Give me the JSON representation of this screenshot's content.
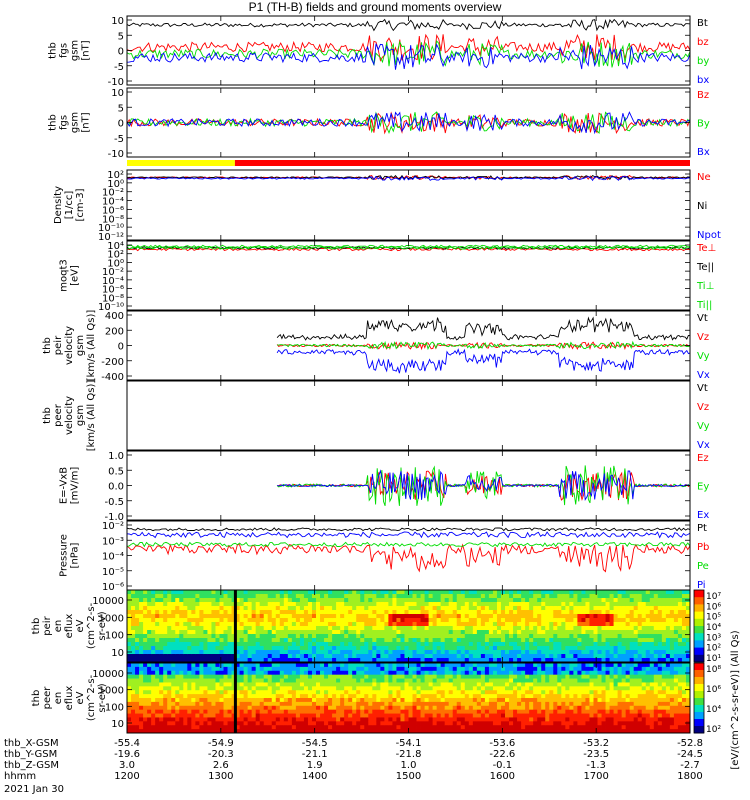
{
  "title": "P1 (TH-B) fields and ground moments overview",
  "date": "2021 Jan 30",
  "colorbar_label": "[eV/(cm^2-s-sr-eV)] (All Qs)",
  "chart_data": {
    "type": "line",
    "xlim": [
      1200,
      1800
    ],
    "panels": [
      {
        "ylabel": [
          "thb",
          "fgs",
          "gsm",
          "[nT]"
        ],
        "yticks": [
          "10",
          "5",
          "0",
          "-5",
          "-10"
        ],
        "ylim": [
          -10,
          10
        ],
        "log": false,
        "legend": [
          {
            "name": "Bt",
            "color": "#000000"
          },
          {
            "name": "bz",
            "color": "#ff0000"
          },
          {
            "name": "by",
            "color": "#00dd00"
          },
          {
            "name": "bx",
            "color": "#0000ff"
          }
        ]
      },
      {
        "ylabel": [
          "thb",
          "fgs",
          "gsm",
          "[nT]"
        ],
        "yticks": [
          "10",
          "5",
          "0",
          "-5",
          "-10"
        ],
        "ylim": [
          -13,
          13
        ],
        "log": false,
        "legend": [
          {
            "name": "Bz",
            "color": "#ff0000"
          },
          {
            "name": "By",
            "color": "#00dd00"
          },
          {
            "name": "Bx",
            "color": "#0000ff"
          }
        ]
      },
      {
        "ylabel": [
          "Density",
          "[1/cc]",
          "[cm-3]"
        ],
        "yticks": [
          "10²",
          "10⁰",
          "10⁻²",
          "10⁻⁴",
          "10⁻⁶",
          "10⁻⁸",
          "10⁻¹⁰",
          "10⁻¹²"
        ],
        "ylim": [
          1e-12,
          100
        ],
        "log": true,
        "legend": [
          {
            "name": "Ne",
            "color": "#ff0000"
          },
          {
            "name": "Ni",
            "color": "#000000"
          },
          {
            "name": "Npot",
            "color": "#0000ff"
          }
        ]
      },
      {
        "ylabel": [
          "moqt3",
          "[eV]"
        ],
        "yticks": [
          "10⁴",
          "10²",
          "10⁰",
          "10⁻²",
          "10⁻⁴",
          "10⁻⁶",
          "10⁻⁸",
          "10⁻¹⁰"
        ],
        "ylim": [
          1e-10,
          10000.0
        ],
        "log": true,
        "legend": [
          {
            "name": "Te⊥",
            "color": "#ff0000"
          },
          {
            "name": "Te||",
            "color": "#000000"
          },
          {
            "name": "Ti⊥",
            "color": "#00dd00"
          },
          {
            "name": "Ti||",
            "color": "#00dd00"
          }
        ]
      },
      {
        "ylabel": [
          "thb",
          "peir",
          "velocity",
          "gsm",
          "[km/s (All Qs)]"
        ],
        "yticks": [
          "400",
          "200",
          "0",
          "-200",
          "-400"
        ],
        "ylim": [
          -400,
          400
        ],
        "log": false,
        "legend": [
          {
            "name": "Vt",
            "color": "#000000"
          },
          {
            "name": "Vz",
            "color": "#ff0000"
          },
          {
            "name": "Vy",
            "color": "#00dd00"
          },
          {
            "name": "Vx",
            "color": "#0000ff"
          }
        ]
      },
      {
        "ylabel": [
          "thb",
          "peer",
          "velocity",
          "gsm",
          "[km/s (All Qs)]"
        ],
        "yticks": [],
        "ylim": [
          -400,
          400
        ],
        "log": false,
        "legend": [
          {
            "name": "Vt",
            "color": "#000000"
          },
          {
            "name": "Vz",
            "color": "#ff0000"
          },
          {
            "name": "Vy",
            "color": "#00dd00"
          },
          {
            "name": "Vx",
            "color": "#0000ff"
          }
        ]
      },
      {
        "ylabel": [
          "E=-VxB",
          "[mV/m]"
        ],
        "yticks": [
          "1.0",
          "0.5",
          "0.0",
          "-0.5",
          "-1.0"
        ],
        "ylim": [
          -1.3,
          1.3
        ],
        "log": false,
        "legend": [
          {
            "name": "Ez",
            "color": "#ff0000"
          },
          {
            "name": "Ey",
            "color": "#00dd00"
          },
          {
            "name": "Ex",
            "color": "#0000ff"
          }
        ]
      },
      {
        "ylabel": [
          "Pressure",
          "[nPa]"
        ],
        "yticks": [
          "10⁻²",
          "10⁻³",
          "10⁻⁴",
          "10⁻⁵",
          "10⁻⁶"
        ],
        "ylim": [
          1e-06,
          0.1
        ],
        "log": true,
        "legend": [
          {
            "name": "Pt",
            "color": "#000000"
          },
          {
            "name": "Pb",
            "color": "#ff0000"
          },
          {
            "name": "Pe",
            "color": "#00dd00"
          },
          {
            "name": "Pi",
            "color": "#0000ff"
          }
        ]
      },
      {
        "ylabel": [
          "thb",
          "peir",
          "en",
          "eflux",
          "eV",
          "(cm^2-s-",
          "sr-eV)"
        ],
        "yticks": [
          "10000",
          "1000",
          "100",
          "10"
        ],
        "ylim": [
          5,
          25000
        ],
        "log": true,
        "kind": "spectrogram",
        "colorbar": [
          "10⁷",
          "10⁶",
          "10⁵",
          "10⁴",
          "10³",
          "10²",
          "10¹"
        ]
      },
      {
        "ylabel": [
          "thb",
          "peer",
          "en",
          "eflux",
          "eV",
          "(cm^2-s-",
          "sr-eV)"
        ],
        "yticks": [
          "10000",
          "1000",
          "100",
          "10"
        ],
        "ylim": [
          5,
          25000
        ],
        "log": true,
        "kind": "spectrogram",
        "colorbar": [
          "10⁸",
          "10⁶",
          "10⁴",
          "10²"
        ]
      }
    ],
    "x_axis_rows": [
      {
        "label": "thb_X-GSM",
        "values": [
          "-55.4",
          "-54.9",
          "-54.5",
          "-54.1",
          "-53.6",
          "-53.2",
          "-52.8"
        ]
      },
      {
        "label": "thb_Y-GSM",
        "values": [
          "-19.6",
          "-20.3",
          "-21.1",
          "-21.8",
          "-22.6",
          "-23.5",
          "-24.5"
        ]
      },
      {
        "label": "thb_Z-GSM",
        "values": [
          "3.0",
          "2.6",
          "1.9",
          "1.0",
          "-0.1",
          "-1.3",
          "-2.7"
        ]
      },
      {
        "label": "hhmm",
        "values": [
          "1200",
          "1300",
          "1400",
          "1500",
          "1600",
          "1700",
          "1800"
        ]
      }
    ],
    "mode_bar": [
      {
        "from": 1200,
        "to": 1315,
        "color": "#ffff00"
      },
      {
        "from": 1315,
        "to": 1800,
        "color": "#ff0000"
      }
    ]
  }
}
